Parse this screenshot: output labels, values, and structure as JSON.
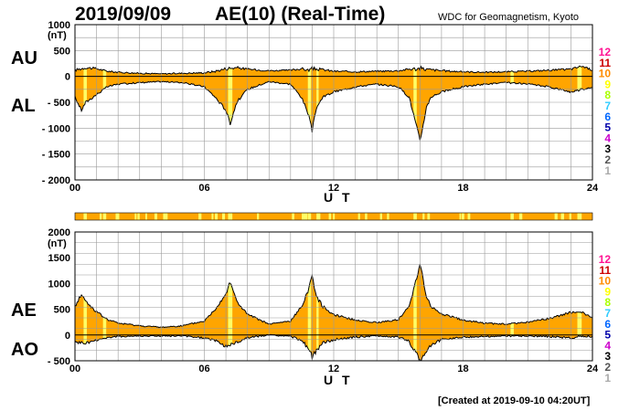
{
  "header": {
    "date": "2019/09/09",
    "title": "AE(10) (Real-Time)",
    "organization": "WDC for Geomagnetism, Kyoto",
    "created": "[Created at 2019-09-10 04:20UT]"
  },
  "legend": {
    "labels": [
      "12",
      "11",
      "10",
      "9",
      "8",
      "7",
      "6",
      "5",
      "4",
      "3",
      "2",
      "1"
    ],
    "colors": [
      "#ff1493",
      "#cc0000",
      "#ff8c00",
      "#ffff00",
      "#aaff00",
      "#33ccff",
      "#0066ff",
      "#0000aa",
      "#cc00cc",
      "#000000",
      "#555555",
      "#aaaaaa"
    ]
  },
  "colors": {
    "fill": "#ffa500",
    "highlight": "#ffff66",
    "line": "#000000",
    "grid": "#999999"
  },
  "chart_data": [
    {
      "type": "area",
      "panel": "AU/AL",
      "unit": "(nT)",
      "side_labels": [
        "AU",
        "AL"
      ],
      "xlabel": "U T",
      "xlim": [
        0,
        24
      ],
      "ylim": [
        -2000,
        1000
      ],
      "yticks": [
        1000,
        500,
        0,
        -500,
        -1000,
        -1500,
        -2000
      ],
      "xticks": [
        0,
        6,
        12,
        18,
        24
      ],
      "xtick_labels": [
        "00",
        "06",
        "12",
        "18",
        "24"
      ],
      "ytick_labels": [
        "1000",
        "500",
        "0",
        "- 500",
        "- 1000",
        "- 1500",
        "- 2000"
      ],
      "grid": true,
      "series": [
        {
          "name": "AU",
          "x": [
            0,
            0.5,
            1,
            1.5,
            2,
            3,
            4,
            5,
            6,
            6.5,
            7,
            7.5,
            8,
            9,
            10,
            10.5,
            10.8,
            11,
            11.5,
            12,
            13,
            14,
            15,
            15.5,
            16,
            16.5,
            17,
            18,
            19,
            20,
            21,
            22,
            23,
            23.5,
            24
          ],
          "values": [
            120,
            170,
            150,
            100,
            80,
            60,
            50,
            60,
            70,
            100,
            150,
            170,
            140,
            110,
            120,
            150,
            120,
            150,
            130,
            100,
            90,
            100,
            110,
            140,
            150,
            130,
            110,
            90,
            80,
            90,
            100,
            120,
            140,
            200,
            120
          ]
        },
        {
          "name": "AL",
          "x": [
            0,
            0.3,
            0.5,
            1,
            1.5,
            2,
            3,
            4,
            5,
            6,
            6.5,
            7,
            7.2,
            7.5,
            8,
            9,
            10,
            10.5,
            10.8,
            11,
            11.2,
            11.5,
            12,
            13,
            14,
            15,
            15.5,
            15.8,
            16,
            16.3,
            16.5,
            17,
            18,
            19,
            20,
            21,
            22,
            23,
            23.5,
            24
          ],
          "values": [
            -400,
            -650,
            -500,
            -350,
            -200,
            -150,
            -120,
            -100,
            -120,
            -200,
            -400,
            -650,
            -900,
            -500,
            -250,
            -100,
            -150,
            -400,
            -700,
            -1050,
            -600,
            -400,
            -300,
            -200,
            -150,
            -200,
            -400,
            -900,
            -1250,
            -600,
            -400,
            -300,
            -200,
            -150,
            -120,
            -150,
            -200,
            -300,
            -250,
            -200
          ]
        }
      ]
    },
    {
      "type": "area",
      "panel": "AE/AO",
      "unit": "(nT)",
      "side_labels": [
        "AE",
        "AO"
      ],
      "xlabel": "U T",
      "xlim": [
        0,
        24
      ],
      "ylim": [
        -500,
        2000
      ],
      "yticks": [
        2000,
        1500,
        1000,
        500,
        0,
        -500
      ],
      "xticks": [
        0,
        6,
        12,
        18,
        24
      ],
      "xtick_labels": [
        "00",
        "06",
        "12",
        "18",
        "24"
      ],
      "ytick_labels": [
        "2000",
        "1500",
        "1000",
        "500",
        "0",
        "- 500"
      ],
      "grid": true,
      "series": [
        {
          "name": "AE",
          "x": [
            0,
            0.3,
            0.5,
            1,
            1.5,
            2,
            3,
            4,
            5,
            6,
            6.5,
            7,
            7.2,
            7.5,
            8,
            9,
            10,
            10.5,
            10.8,
            11,
            11.2,
            11.5,
            12,
            13,
            14,
            15,
            15.5,
            15.8,
            16,
            16.3,
            16.5,
            17,
            18,
            19,
            20,
            21,
            22,
            23,
            23.5,
            24
          ],
          "values": [
            550,
            800,
            650,
            450,
            300,
            230,
            180,
            150,
            180,
            270,
            500,
            800,
            1050,
            650,
            400,
            210,
            270,
            550,
            850,
            1150,
            750,
            550,
            400,
            290,
            240,
            300,
            550,
            1050,
            1400,
            750,
            550,
            410,
            290,
            230,
            210,
            250,
            320,
            440,
            450,
            320
          ]
        },
        {
          "name": "AO",
          "x": [
            0,
            0.5,
            1,
            1.5,
            2,
            3,
            4,
            5,
            6,
            6.5,
            7,
            7.5,
            8,
            9,
            10,
            10.5,
            10.8,
            11,
            11.5,
            12,
            13,
            14,
            15,
            15.5,
            16,
            16.5,
            17,
            18,
            19,
            20,
            21,
            22,
            23,
            23.5,
            24
          ],
          "values": [
            -140,
            -160,
            -100,
            -50,
            -30,
            -20,
            -20,
            -20,
            -60,
            -100,
            -220,
            -150,
            -50,
            0,
            -30,
            -100,
            -250,
            -420,
            -150,
            -90,
            -40,
            -20,
            -40,
            -130,
            -480,
            -200,
            -90,
            -40,
            -30,
            -20,
            -20,
            -30,
            -60,
            -20,
            -30
          ]
        }
      ]
    }
  ]
}
